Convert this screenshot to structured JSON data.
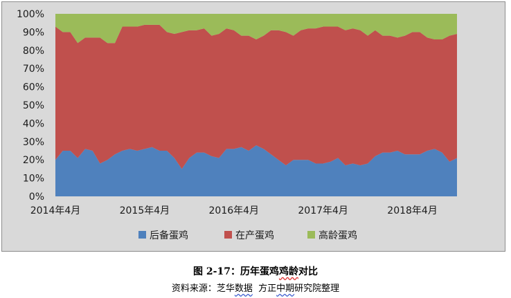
{
  "caption": {
    "prefix": "图 2-17：历年蛋鸡",
    "marked": "鸡龄",
    "suffix": "对比"
  },
  "source": {
    "label": "资料来源：芝华",
    "marked1": "数据",
    "gap": "  方正",
    "marked2": "中期",
    "suffix": "研究院整理"
  },
  "colors": {
    "frame_bg": "#d9d9d9",
    "series_young": "#4f81bd",
    "series_laying": "#c0504d",
    "series_old": "#9bbb59"
  },
  "chart_data": {
    "type": "area",
    "stacked": "percent",
    "title": "",
    "xlabel": "",
    "ylabel": "",
    "ylim": [
      0,
      100
    ],
    "y_ticks": [
      "0%",
      "10%",
      "20%",
      "30%",
      "40%",
      "50%",
      "60%",
      "70%",
      "80%",
      "90%",
      "100%"
    ],
    "x_tick_labels": [
      {
        "label": "2014年4月",
        "index": 0
      },
      {
        "label": "2015年4月",
        "index": 12
      },
      {
        "label": "2016年4月",
        "index": 24
      },
      {
        "label": "2017年4月",
        "index": 36
      },
      {
        "label": "2018年4月",
        "index": 48
      }
    ],
    "legend_position": "bottom",
    "series": [
      {
        "name": "后备蛋鸡",
        "color": "#4f81bd",
        "values": [
          20,
          25,
          25,
          21,
          26,
          25,
          18,
          20,
          23,
          25,
          26,
          25,
          26,
          27,
          25,
          25,
          21,
          15,
          21,
          24,
          24,
          22,
          21,
          26,
          26,
          27,
          25,
          28,
          26,
          23,
          20,
          17,
          20,
          20,
          20,
          18,
          18,
          19,
          21,
          17,
          18,
          17,
          18,
          22,
          24,
          24,
          25,
          23,
          23,
          23,
          25,
          26,
          24,
          19,
          21
        ]
      },
      {
        "name": "在产蛋鸡",
        "color": "#c0504d",
        "values": [
          73,
          65,
          65,
          63,
          61,
          62,
          69,
          64,
          61,
          68,
          67,
          68,
          68,
          67,
          69,
          65,
          68,
          75,
          70,
          67,
          68,
          66,
          68,
          66,
          65,
          61,
          63,
          58,
          62,
          68,
          71,
          73,
          68,
          71,
          72,
          74,
          75,
          74,
          72,
          74,
          74,
          74,
          70,
          69,
          64,
          64,
          62,
          65,
          67,
          67,
          62,
          60,
          62,
          69,
          68
        ]
      },
      {
        "name": "高龄蛋鸡",
        "color": "#9bbb59",
        "values": [
          7,
          10,
          10,
          16,
          13,
          13,
          13,
          16,
          16,
          7,
          7,
          7,
          6,
          6,
          6,
          10,
          11,
          10,
          9,
          9,
          8,
          12,
          11,
          8,
          9,
          12,
          12,
          14,
          12,
          9,
          9,
          10,
          12,
          9,
          8,
          8,
          7,
          7,
          7,
          9,
          8,
          9,
          12,
          9,
          12,
          12,
          13,
          12,
          10,
          10,
          13,
          14,
          14,
          12,
          11
        ]
      }
    ]
  }
}
